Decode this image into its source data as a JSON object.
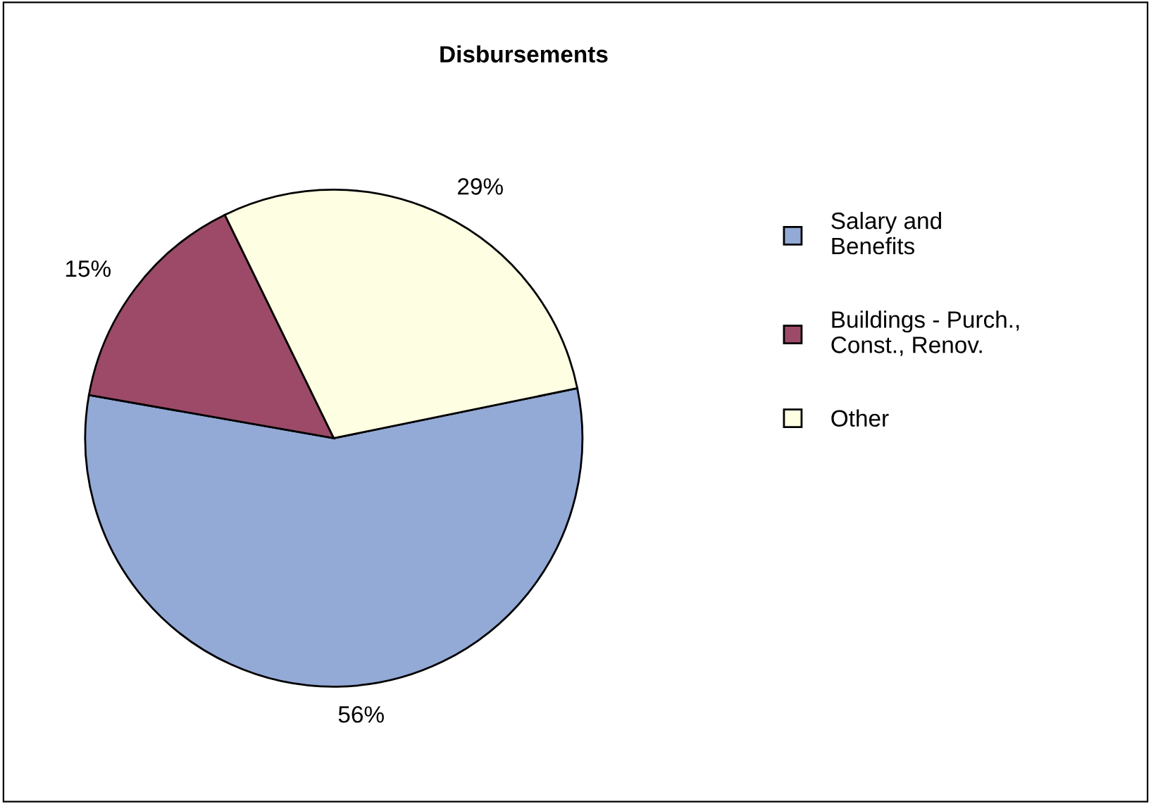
{
  "chart_data": {
    "type": "pie",
    "title": "Disbursements",
    "categories": [
      "Salary and\nBenefits",
      "Buildings - Purch.,\nConst., Renov.",
      "Other"
    ],
    "values": [
      56,
      15,
      29
    ],
    "value_labels": [
      "56%",
      "15%",
      "29%"
    ],
    "colors": [
      "#93a9d6",
      "#9c4a68",
      "#fefee2"
    ],
    "legend": "right"
  }
}
